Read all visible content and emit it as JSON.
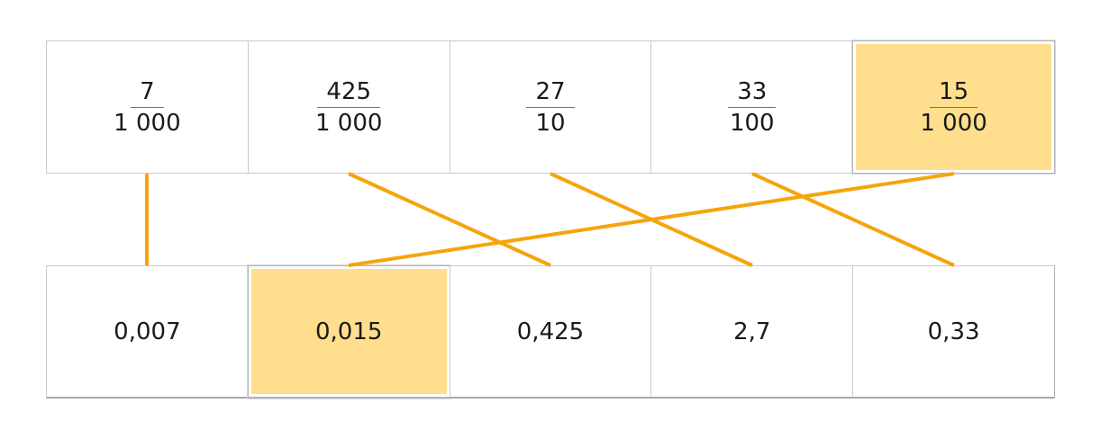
{
  "fractions": [
    {
      "numerator": "7",
      "denominator": "1 000",
      "selected": false
    },
    {
      "numerator": "425",
      "denominator": "1 000",
      "selected": false
    },
    {
      "numerator": "27",
      "denominator": "10",
      "selected": false
    },
    {
      "numerator": "33",
      "denominator": "100",
      "selected": false
    },
    {
      "numerator": "15",
      "denominator": "1 000",
      "selected": true
    }
  ],
  "decimals": [
    {
      "value": "0,007",
      "selected": false
    },
    {
      "value": "0,015",
      "selected": true
    },
    {
      "value": "0,425",
      "selected": false
    },
    {
      "value": "2,7",
      "selected": false
    },
    {
      "value": "0,33",
      "selected": false
    }
  ],
  "connections": [
    {
      "from_fraction": 0,
      "to_decimal": 0
    },
    {
      "from_fraction": 1,
      "to_decimal": 2
    },
    {
      "from_fraction": 2,
      "to_decimal": 3
    },
    {
      "from_fraction": 3,
      "to_decimal": 4
    },
    {
      "from_fraction": 4,
      "to_decimal": 1
    }
  ],
  "colors": {
    "line": "#f5a40c",
    "selected_fill": "#ffde8d",
    "fraction_bar": "#3b7fd9"
  }
}
